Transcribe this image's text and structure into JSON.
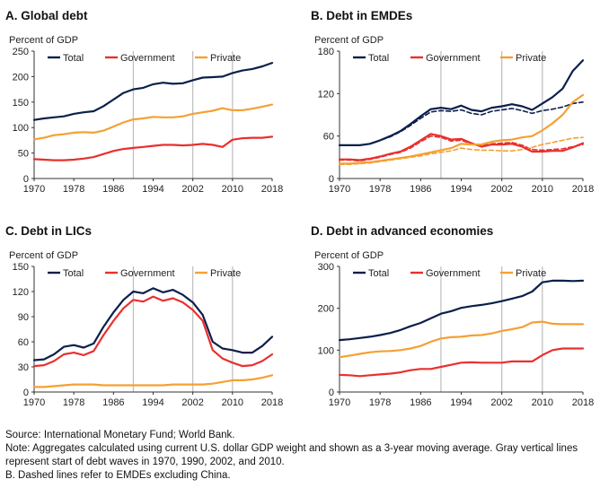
{
  "figure": {
    "source": "Source: International Monetary Fund; World Bank.",
    "note": "Note: Aggregates calculated using current U.S. dollar GDP weight and shown as a 3-year moving average. Gray vertical lines represent start of debt waves in 1970, 1990, 2002, and 2010.",
    "note_b": "B. Dashed lines refer to EMDEs excluding China."
  },
  "colors": {
    "total": "#0b1f4b",
    "government": "#e8302f",
    "private": "#f5a033",
    "waveline": "#bdbdbd",
    "axis": "#333333"
  },
  "chart_data": [
    {
      "type": "line",
      "title": "A. Global debt",
      "ylabel": "Percent of GDP",
      "ylim": [
        0,
        250
      ],
      "yticks": [
        0,
        50,
        100,
        150,
        200,
        250
      ],
      "xlim": [
        1970,
        2018
      ],
      "xticks": [
        1970,
        1978,
        1986,
        1994,
        2002,
        2010,
        2018
      ],
      "wave_lines": [
        1990,
        2002,
        2010
      ],
      "series": [
        {
          "name": "Total",
          "key": "total",
          "x": [
            1970,
            1972,
            1974,
            1976,
            1978,
            1980,
            1982,
            1984,
            1986,
            1988,
            1990,
            1992,
            1994,
            1996,
            1998,
            2000,
            2002,
            2004,
            2006,
            2008,
            2010,
            2012,
            2014,
            2016,
            2018
          ],
          "y": [
            115,
            118,
            120,
            122,
            127,
            130,
            132,
            142,
            155,
            168,
            175,
            178,
            185,
            188,
            186,
            187,
            193,
            198,
            199,
            200,
            207,
            212,
            215,
            220,
            227
          ]
        },
        {
          "name": "Government",
          "key": "government",
          "x": [
            1970,
            1972,
            1974,
            1976,
            1978,
            1980,
            1982,
            1984,
            1986,
            1988,
            1990,
            1992,
            1994,
            1996,
            1998,
            2000,
            2002,
            2004,
            2006,
            2008,
            2010,
            2012,
            2014,
            2016,
            2018
          ],
          "y": [
            38,
            37,
            36,
            36,
            37,
            39,
            42,
            48,
            54,
            58,
            60,
            62,
            64,
            66,
            66,
            65,
            66,
            68,
            66,
            62,
            76,
            79,
            80,
            80,
            82
          ]
        },
        {
          "name": "Private",
          "key": "private",
          "x": [
            1970,
            1972,
            1974,
            1976,
            1978,
            1980,
            1982,
            1984,
            1986,
            1988,
            1990,
            1992,
            1994,
            1996,
            1998,
            2000,
            2002,
            2004,
            2006,
            2008,
            2010,
            2012,
            2014,
            2016,
            2018
          ],
          "y": [
            77,
            80,
            85,
            87,
            90,
            91,
            90,
            94,
            102,
            110,
            116,
            118,
            121,
            120,
            120,
            122,
            127,
            130,
            133,
            138,
            134,
            134,
            137,
            141,
            145
          ]
        }
      ]
    },
    {
      "type": "line",
      "title": "B. Debt in EMDEs",
      "ylabel": "Percent of GDP",
      "ylim": [
        0,
        180
      ],
      "yticks": [
        0,
        60,
        120,
        180
      ],
      "xlim": [
        1970,
        2018
      ],
      "xticks": [
        1970,
        1978,
        1986,
        1994,
        2002,
        2010,
        2018
      ],
      "wave_lines": [
        1990,
        2002,
        2010
      ],
      "series": [
        {
          "name": "Total",
          "key": "total",
          "x": [
            1970,
            1972,
            1974,
            1976,
            1978,
            1980,
            1982,
            1984,
            1986,
            1988,
            1990,
            1992,
            1994,
            1996,
            1998,
            2000,
            2002,
            2004,
            2006,
            2008,
            2010,
            2012,
            2014,
            2016,
            2018
          ],
          "y": [
            47,
            47,
            47,
            49,
            54,
            60,
            67,
            77,
            88,
            98,
            100,
            98,
            103,
            97,
            95,
            100,
            102,
            105,
            102,
            97,
            106,
            115,
            127,
            152,
            167
          ]
        },
        {
          "name": "Government",
          "key": "government",
          "x": [
            1970,
            1972,
            1974,
            1976,
            1978,
            1980,
            1982,
            1984,
            1986,
            1988,
            1990,
            1992,
            1994,
            1996,
            1998,
            2000,
            2002,
            2004,
            2006,
            2008,
            2010,
            2012,
            2014,
            2016,
            2018
          ],
          "y": [
            27,
            27,
            26,
            28,
            31,
            35,
            38,
            45,
            54,
            63,
            60,
            55,
            56,
            50,
            45,
            48,
            48,
            49,
            45,
            38,
            38,
            39,
            39,
            44,
            50
          ]
        },
        {
          "name": "Private",
          "key": "private",
          "x": [
            1970,
            1972,
            1974,
            1976,
            1978,
            1980,
            1982,
            1984,
            1986,
            1988,
            1990,
            1992,
            1994,
            1996,
            1998,
            2000,
            2002,
            2004,
            2006,
            2008,
            2010,
            2012,
            2014,
            2016,
            2018
          ],
          "y": [
            21,
            21,
            22,
            23,
            25,
            27,
            29,
            31,
            34,
            37,
            40,
            43,
            49,
            48,
            48,
            52,
            54,
            55,
            58,
            60,
            68,
            78,
            90,
            108,
            118
          ]
        }
      ],
      "dashed_series": [
        {
          "name": "Total (excl. China)",
          "key": "total",
          "x": [
            1970,
            1972,
            1974,
            1976,
            1978,
            1980,
            1982,
            1984,
            1986,
            1988,
            1990,
            1992,
            1994,
            1996,
            1998,
            2000,
            2002,
            2004,
            2006,
            2008,
            2010,
            2012,
            2014,
            2016,
            2018
          ],
          "y": [
            47,
            47,
            47,
            49,
            54,
            59,
            66,
            75,
            85,
            94,
            96,
            95,
            97,
            92,
            90,
            95,
            97,
            99,
            96,
            92,
            96,
            98,
            101,
            106,
            108
          ]
        },
        {
          "name": "Government (excl. China)",
          "key": "government",
          "x": [
            1970,
            1972,
            1974,
            1976,
            1978,
            1980,
            1982,
            1984,
            1986,
            1988,
            1990,
            1992,
            1994,
            1996,
            1998,
            2000,
            2002,
            2004,
            2006,
            2008,
            2010,
            2012,
            2014,
            2016,
            2018
          ],
          "y": [
            26,
            26,
            25,
            27,
            30,
            34,
            37,
            43,
            52,
            60,
            58,
            53,
            54,
            49,
            46,
            49,
            50,
            51,
            47,
            41,
            40,
            41,
            42,
            45,
            48
          ]
        },
        {
          "name": "Private (excl. China)",
          "key": "private",
          "x": [
            1970,
            1972,
            1974,
            1976,
            1978,
            1980,
            1982,
            1984,
            1986,
            1988,
            1990,
            1992,
            1994,
            1996,
            1998,
            2000,
            2002,
            2004,
            2006,
            2008,
            2010,
            2012,
            2014,
            2016,
            2018
          ],
          "y": [
            20,
            20,
            21,
            22,
            24,
            26,
            28,
            30,
            32,
            35,
            37,
            39,
            43,
            41,
            40,
            40,
            39,
            39,
            41,
            44,
            48,
            51,
            54,
            57,
            58
          ]
        }
      ]
    },
    {
      "type": "line",
      "title": "C. Debt in LICs",
      "ylabel": "Percent of GDP",
      "ylim": [
        0,
        150
      ],
      "yticks": [
        0,
        30,
        60,
        90,
        120,
        150
      ],
      "xlim": [
        1970,
        2018
      ],
      "xticks": [
        1970,
        1978,
        1986,
        1994,
        2002,
        2010,
        2018
      ],
      "wave_lines": [
        1990,
        2002,
        2010
      ],
      "series": [
        {
          "name": "Total",
          "key": "total",
          "x": [
            1970,
            1972,
            1974,
            1976,
            1978,
            1980,
            1982,
            1984,
            1986,
            1988,
            1990,
            1992,
            1994,
            1996,
            1998,
            2000,
            2002,
            2004,
            2006,
            2008,
            2010,
            2012,
            2014,
            2016,
            2018
          ],
          "y": [
            38,
            39,
            45,
            54,
            56,
            53,
            58,
            78,
            95,
            110,
            120,
            118,
            124,
            119,
            122,
            116,
            107,
            92,
            60,
            52,
            50,
            47,
            47,
            55,
            66
          ]
        },
        {
          "name": "Government",
          "key": "government",
          "x": [
            1970,
            1972,
            1974,
            1976,
            1978,
            1980,
            1982,
            1984,
            1986,
            1988,
            1990,
            1992,
            1994,
            1996,
            1998,
            2000,
            2002,
            2004,
            2006,
            2008,
            2010,
            2012,
            2014,
            2016,
            2018
          ],
          "y": [
            31,
            32,
            37,
            45,
            47,
            44,
            49,
            68,
            85,
            100,
            110,
            108,
            114,
            109,
            112,
            107,
            98,
            85,
            50,
            40,
            35,
            31,
            32,
            37,
            45
          ]
        },
        {
          "name": "Private",
          "key": "private",
          "x": [
            1970,
            1972,
            1974,
            1976,
            1978,
            1980,
            1982,
            1984,
            1986,
            1988,
            1990,
            1992,
            1994,
            1996,
            1998,
            2000,
            2002,
            2004,
            2006,
            2008,
            2010,
            2012,
            2014,
            2016,
            2018
          ],
          "y": [
            6,
            6,
            7,
            8,
            9,
            9,
            9,
            8,
            8,
            8,
            8,
            8,
            8,
            8,
            9,
            9,
            9,
            9,
            10,
            12,
            14,
            14,
            15,
            17,
            20
          ]
        }
      ]
    },
    {
      "type": "line",
      "title": "D. Debt in advanced economies",
      "ylabel": "Percent of GDP",
      "ylim": [
        0,
        300
      ],
      "yticks": [
        0,
        100,
        200,
        300
      ],
      "xlim": [
        1970,
        2018
      ],
      "xticks": [
        1970,
        1978,
        1986,
        1994,
        2002,
        2010,
        2018
      ],
      "wave_lines": [
        1990,
        2002,
        2010
      ],
      "series": [
        {
          "name": "Total",
          "key": "total",
          "x": [
            1970,
            1972,
            1974,
            1976,
            1978,
            1980,
            1982,
            1984,
            1986,
            1988,
            1990,
            1992,
            1994,
            1996,
            1998,
            2000,
            2002,
            2004,
            2006,
            2008,
            2010,
            2012,
            2014,
            2016,
            2018
          ],
          "y": [
            124,
            126,
            129,
            132,
            136,
            141,
            148,
            157,
            165,
            176,
            187,
            193,
            201,
            205,
            208,
            212,
            217,
            223,
            229,
            240,
            262,
            266,
            266,
            265,
            266
          ]
        },
        {
          "name": "Government",
          "key": "government",
          "x": [
            1970,
            1972,
            1974,
            1976,
            1978,
            1980,
            1982,
            1984,
            1986,
            1988,
            1990,
            1992,
            1994,
            1996,
            1998,
            2000,
            2002,
            2004,
            2006,
            2008,
            2010,
            2012,
            2014,
            2016,
            2018
          ],
          "y": [
            41,
            40,
            38,
            40,
            42,
            44,
            47,
            52,
            55,
            55,
            60,
            65,
            70,
            71,
            70,
            70,
            70,
            73,
            73,
            73,
            88,
            100,
            104,
            104,
            104
          ]
        },
        {
          "name": "Private",
          "key": "private",
          "x": [
            1970,
            1972,
            1974,
            1976,
            1978,
            1980,
            1982,
            1984,
            1986,
            1988,
            1990,
            1992,
            1994,
            1996,
            1998,
            2000,
            2002,
            2004,
            2006,
            2008,
            2010,
            2012,
            2014,
            2016,
            2018
          ],
          "y": [
            83,
            87,
            91,
            95,
            97,
            98,
            100,
            104,
            110,
            120,
            128,
            131,
            132,
            135,
            136,
            140,
            146,
            150,
            155,
            166,
            168,
            163,
            162,
            162,
            162
          ]
        }
      ]
    }
  ]
}
